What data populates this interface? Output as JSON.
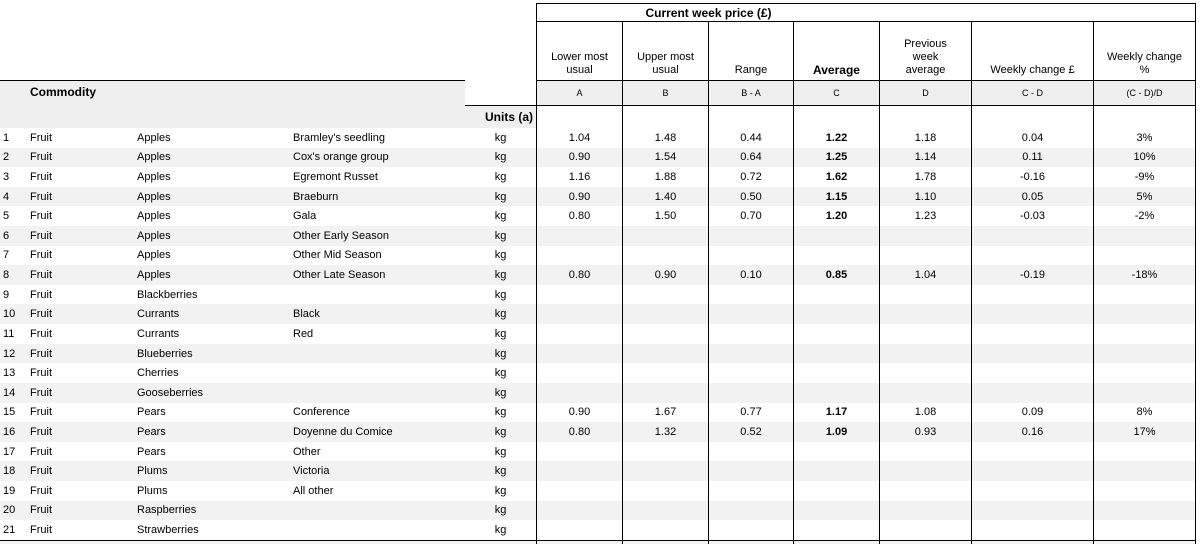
{
  "table": {
    "title": "Current week price (£)",
    "commodity_header": "Commodity",
    "units_header": "Units (a)",
    "columns": [
      {
        "label": "Lower most\nusual",
        "formula": "A"
      },
      {
        "label": "Upper most\nusual",
        "formula": "B"
      },
      {
        "label": "Range",
        "formula": "B - A"
      },
      {
        "label": "Average",
        "formula": "C"
      },
      {
        "label": "Previous\nweek\naverage",
        "formula": "D"
      },
      {
        "label": "Weekly change £",
        "formula": "C - D"
      },
      {
        "label": "Weekly change\n%",
        "formula": "(C - D)/D"
      }
    ],
    "rows": [
      {
        "num": "1",
        "category": "Fruit",
        "commodity": "Apples",
        "variety": "Bramley's seedling",
        "units": "kg",
        "values": [
          "1.04",
          "1.48",
          "0.44",
          "1.22",
          "1.18",
          "0.04",
          "3%"
        ]
      },
      {
        "num": "2",
        "category": "Fruit",
        "commodity": "Apples",
        "variety": "Cox's orange group",
        "units": "kg",
        "values": [
          "0.90",
          "1.54",
          "0.64",
          "1.25",
          "1.14",
          "0.11",
          "10%"
        ]
      },
      {
        "num": "3",
        "category": "Fruit",
        "commodity": "Apples",
        "variety": "Egremont Russet",
        "units": "kg",
        "values": [
          "1.16",
          "1.88",
          "0.72",
          "1.62",
          "1.78",
          "-0.16",
          "-9%"
        ]
      },
      {
        "num": "4",
        "category": "Fruit",
        "commodity": "Apples",
        "variety": "Braeburn",
        "units": "kg",
        "values": [
          "0.90",
          "1.40",
          "0.50",
          "1.15",
          "1.10",
          "0.05",
          "5%"
        ]
      },
      {
        "num": "5",
        "category": "Fruit",
        "commodity": "Apples",
        "variety": "Gala",
        "units": "kg",
        "values": [
          "0.80",
          "1.50",
          "0.70",
          "1.20",
          "1.23",
          "-0.03",
          "-2%"
        ]
      },
      {
        "num": "6",
        "category": "Fruit",
        "commodity": "Apples",
        "variety": "Other Early Season",
        "units": "kg",
        "values": [
          "",
          "",
          "",
          "",
          "",
          "",
          ""
        ]
      },
      {
        "num": "7",
        "category": "Fruit",
        "commodity": "Apples",
        "variety": "Other Mid Season",
        "units": "kg",
        "values": [
          "",
          "",
          "",
          "",
          "",
          "",
          ""
        ]
      },
      {
        "num": "8",
        "category": "Fruit",
        "commodity": "Apples",
        "variety": "Other Late Season",
        "units": "kg",
        "values": [
          "0.80",
          "0.90",
          "0.10",
          "0.85",
          "1.04",
          "-0.19",
          "-18%"
        ]
      },
      {
        "num": "9",
        "category": "Fruit",
        "commodity": "Blackberries",
        "variety": "",
        "units": "kg",
        "values": [
          "",
          "",
          "",
          "",
          "",
          "",
          ""
        ]
      },
      {
        "num": "10",
        "category": "Fruit",
        "commodity": "Currants",
        "variety": "Black",
        "units": "kg",
        "values": [
          "",
          "",
          "",
          "",
          "",
          "",
          ""
        ]
      },
      {
        "num": "11",
        "category": "Fruit",
        "commodity": "Currants",
        "variety": "Red",
        "units": "kg",
        "values": [
          "",
          "",
          "",
          "",
          "",
          "",
          ""
        ]
      },
      {
        "num": "12",
        "category": "Fruit",
        "commodity": "Blueberries",
        "variety": "",
        "units": "kg",
        "values": [
          "",
          "",
          "",
          "",
          "",
          "",
          ""
        ]
      },
      {
        "num": "13",
        "category": "Fruit",
        "commodity": "Cherries",
        "variety": "",
        "units": "kg",
        "values": [
          "",
          "",
          "",
          "",
          "",
          "",
          ""
        ]
      },
      {
        "num": "14",
        "category": "Fruit",
        "commodity": "Gooseberries",
        "variety": "",
        "units": "kg",
        "values": [
          "",
          "",
          "",
          "",
          "",
          "",
          ""
        ]
      },
      {
        "num": "15",
        "category": "Fruit",
        "commodity": "Pears",
        "variety": "Conference",
        "units": "kg",
        "values": [
          "0.90",
          "1.67",
          "0.77",
          "1.17",
          "1.08",
          "0.09",
          "8%"
        ]
      },
      {
        "num": "16",
        "category": "Fruit",
        "commodity": "Pears",
        "variety": "Doyenne du Comice",
        "units": "kg",
        "values": [
          "0.80",
          "1.32",
          "0.52",
          "1.09",
          "0.93",
          "0.16",
          "17%"
        ]
      },
      {
        "num": "17",
        "category": "Fruit",
        "commodity": "Pears",
        "variety": "Other",
        "units": "kg",
        "values": [
          "",
          "",
          "",
          "",
          "",
          "",
          ""
        ]
      },
      {
        "num": "18",
        "category": "Fruit",
        "commodity": "Plums",
        "variety": "Victoria",
        "units": "kg",
        "values": [
          "",
          "",
          "",
          "",
          "",
          "",
          ""
        ]
      },
      {
        "num": "19",
        "category": "Fruit",
        "commodity": "Plums",
        "variety": "All other",
        "units": "kg",
        "values": [
          "",
          "",
          "",
          "",
          "",
          "",
          ""
        ]
      },
      {
        "num": "20",
        "category": "Fruit",
        "commodity": "Raspberries",
        "variety": "",
        "units": "kg",
        "values": [
          "",
          "",
          "",
          "",
          "",
          "",
          ""
        ]
      },
      {
        "num": "21",
        "category": "Fruit",
        "commodity": "Strawberries",
        "variety": "",
        "units": "kg",
        "values": [
          "",
          "",
          "",
          "",
          "",
          "",
          ""
        ]
      }
    ]
  },
  "colors": {
    "border": "#000000",
    "band_bg": "#efefef",
    "alt_row_bg": "#f2f2f2",
    "text": "#000000"
  }
}
